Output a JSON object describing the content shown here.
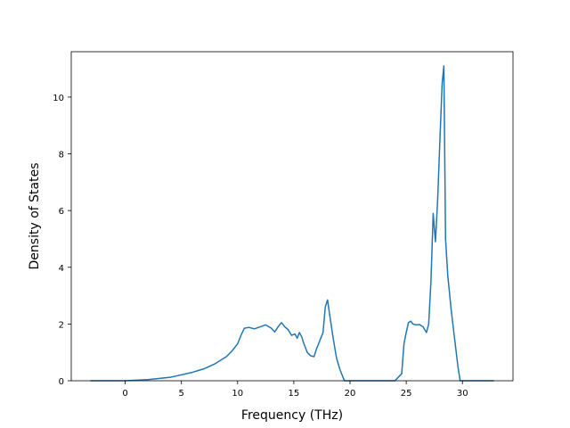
{
  "chart_data": {
    "type": "line",
    "title": "",
    "xlabel": "Frequency (THz)",
    "ylabel": "Density of States",
    "xlim": [
      -4.8,
      34.5
    ],
    "ylim": [
      0,
      11.6
    ],
    "xticks": [
      0,
      5,
      10,
      15,
      20,
      25,
      30
    ],
    "yticks": [
      0,
      2,
      4,
      6,
      8,
      10
    ],
    "grid": false,
    "legend": "none",
    "series": [
      {
        "color": "#1f77b4",
        "x": [
          -3.1,
          0.0,
          2.0,
          4.0,
          6.0,
          7.0,
          8.0,
          9.0,
          9.5,
          10.0,
          10.3,
          10.6,
          11.0,
          11.5,
          12.0,
          12.5,
          13.0,
          13.3,
          13.6,
          13.9,
          14.2,
          14.5,
          14.8,
          15.1,
          15.3,
          15.5,
          15.7,
          15.9,
          16.2,
          16.5,
          16.8,
          17.0,
          17.3,
          17.6,
          17.8,
          18.0,
          18.2,
          18.5,
          18.8,
          19.1,
          19.5,
          20.0,
          22.0,
          24.0,
          24.6,
          24.8,
          25.0,
          25.2,
          25.4,
          25.6,
          25.9,
          26.2,
          26.5,
          26.8,
          27.0,
          27.2,
          27.4,
          27.6,
          27.8,
          28.0,
          28.2,
          28.35,
          28.5,
          28.7,
          29.0,
          29.3,
          29.6,
          29.8,
          30.0,
          32.8
        ],
        "y": [
          0.0,
          0.0,
          0.04,
          0.12,
          0.3,
          0.42,
          0.6,
          0.85,
          1.05,
          1.3,
          1.6,
          1.85,
          1.88,
          1.83,
          1.9,
          1.97,
          1.85,
          1.72,
          1.9,
          2.05,
          1.9,
          1.8,
          1.6,
          1.65,
          1.5,
          1.7,
          1.55,
          1.3,
          1.0,
          0.88,
          0.85,
          1.1,
          1.4,
          1.7,
          2.6,
          2.85,
          2.3,
          1.5,
          0.8,
          0.4,
          0.0,
          0.0,
          0.0,
          0.0,
          0.25,
          1.3,
          1.7,
          2.05,
          2.1,
          2.0,
          1.97,
          1.98,
          1.9,
          1.7,
          2.0,
          3.5,
          5.9,
          4.9,
          6.4,
          8.5,
          10.5,
          11.1,
          5.0,
          3.7,
          2.5,
          1.5,
          0.5,
          0.0,
          0.0,
          0.0
        ]
      }
    ]
  }
}
